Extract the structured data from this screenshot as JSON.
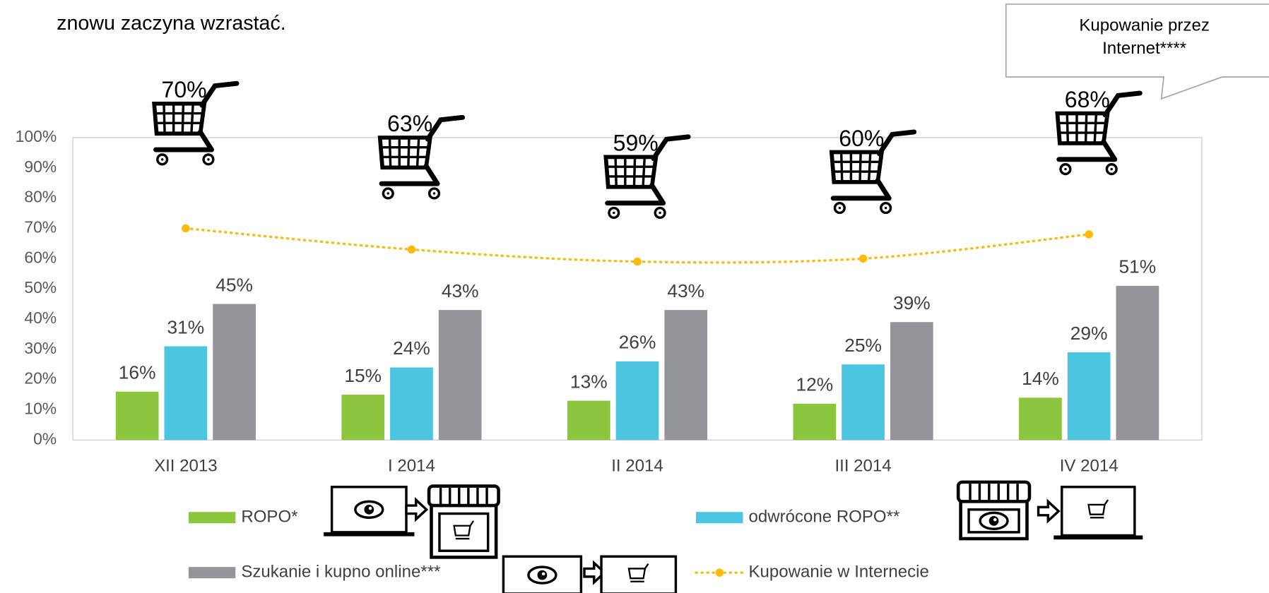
{
  "chart_data": {
    "type": "bar",
    "subtitle": "znowu zaczyna wzrastać.",
    "annotation": "Kupowanie przez Internet****",
    "categories": [
      "XII 2013",
      "I 2014",
      "II 2014",
      "III 2014",
      "IV 2014"
    ],
    "series": [
      {
        "name": "ROPO*",
        "color": "#8cc63e",
        "values": [
          16,
          15,
          13,
          12,
          14
        ],
        "value_labels": [
          "16%",
          "15%",
          "13%",
          "12%",
          "14%"
        ]
      },
      {
        "name": "odwrócone ROPO**",
        "color": "#4cc6e0",
        "values": [
          31,
          24,
          26,
          25,
          29
        ],
        "value_labels": [
          "31%",
          "24%",
          "26%",
          "25%",
          "29%"
        ]
      },
      {
        "name": "Szukanie i kupno online***",
        "color": "#939598",
        "values": [
          45,
          43,
          43,
          39,
          51
        ],
        "value_labels": [
          "45%",
          "43%",
          "43%",
          "39%",
          "51%"
        ]
      },
      {
        "name": "Kupowanie w Internecie",
        "type": "line",
        "color": "#fbbc09",
        "values": [
          70,
          63,
          59,
          60,
          68
        ],
        "value_labels": [
          "70%",
          "63%",
          "59%",
          "60%",
          "68%"
        ]
      }
    ],
    "ylim": [
      0,
      100
    ],
    "yticks": [
      {
        "value": 0,
        "label": "0%"
      },
      {
        "value": 10,
        "label": "10%"
      },
      {
        "value": 20,
        "label": "20%"
      },
      {
        "value": 30,
        "label": "30%"
      },
      {
        "value": 40,
        "label": "40%"
      },
      {
        "value": 50,
        "label": "50%"
      },
      {
        "value": 60,
        "label": "60%"
      },
      {
        "value": 70,
        "label": "70%"
      },
      {
        "value": 80,
        "label": "80%"
      },
      {
        "value": 90,
        "label": "90%"
      },
      {
        "value": 100,
        "label": "100%"
      }
    ],
    "grid": false
  }
}
